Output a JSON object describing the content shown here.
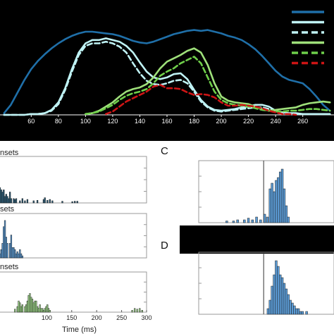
{
  "panel_labels": {
    "c": "C",
    "d": "D"
  },
  "small_titles": [
    "nsets",
    "sets",
    "nsets"
  ],
  "x_axis_label": "Time (ms)",
  "chart_data": [
    {
      "type": "line",
      "x": [
        40,
        45,
        50,
        55,
        60,
        65,
        70,
        75,
        80,
        85,
        90,
        95,
        100,
        105,
        110,
        115,
        120,
        125,
        130,
        135,
        140,
        145,
        150,
        155,
        160,
        165,
        170,
        175,
        180,
        185,
        190,
        195,
        200,
        205,
        210,
        215,
        220,
        225,
        230,
        235,
        240,
        245,
        250,
        255,
        260,
        265,
        270,
        275,
        280
      ],
      "xlim": [
        37,
        283
      ],
      "ylim": [
        0,
        1
      ],
      "xticks": [
        60,
        80,
        100,
        120,
        140,
        160,
        180,
        200,
        220,
        240,
        260
      ],
      "series": [
        {
          "color": "#1f6fa8",
          "dash": "solid",
          "values": [
            0.02,
            0.12,
            0.27,
            0.42,
            0.55,
            0.65,
            0.73,
            0.8,
            0.86,
            0.91,
            0.95,
            0.98,
            1.0,
            1.0,
            0.99,
            0.98,
            0.97,
            0.95,
            0.92,
            0.89,
            0.87,
            0.86,
            0.88,
            0.91,
            0.94,
            0.97,
            0.99,
            1.01,
            1.02,
            1.01,
            1.02,
            1.0,
            0.98,
            0.95,
            0.93,
            0.9,
            0.85,
            0.79,
            0.71,
            0.62,
            0.53,
            0.46,
            0.42,
            0.4,
            0.38,
            0.31,
            0.22,
            0.12,
            0.05
          ]
        },
        {
          "color": "#bff2f4",
          "dash": "solid",
          "values": [
            0,
            0,
            0,
            0,
            0.01,
            0.01,
            0.02,
            0.06,
            0.15,
            0.32,
            0.55,
            0.75,
            0.86,
            0.9,
            0.9,
            0.92,
            0.9,
            0.88,
            0.83,
            0.75,
            0.63,
            0.52,
            0.45,
            0.43,
            0.45,
            0.49,
            0.5,
            0.43,
            0.3,
            0.18,
            0.1,
            0.06,
            0.05,
            0.06,
            0.07,
            0.09,
            0.1,
            0.12,
            0.12,
            0.1,
            0.05,
            0.03,
            0.02,
            0.02,
            0.01,
            0.01,
            0.01,
            0.01,
            0.01
          ]
        },
        {
          "color": "#bff2f4",
          "dash": "dash",
          "values": [
            0,
            0,
            0,
            0,
            0.01,
            0.01,
            0.02,
            0.05,
            0.13,
            0.3,
            0.52,
            0.72,
            0.83,
            0.86,
            0.86,
            0.88,
            0.86,
            0.82,
            0.75,
            0.62,
            0.5,
            0.41,
            0.37,
            0.36,
            0.38,
            0.41,
            0.42,
            0.38,
            0.28,
            0.16,
            0.09,
            0.05,
            0.04,
            0.05,
            0.06,
            0.07,
            0.08,
            0.09,
            0.09,
            0.07,
            0.04,
            0.02,
            0.01,
            0.01,
            0.01,
            0.01,
            0.01,
            0.01,
            0.01
          ]
        },
        {
          "color": "#9ee07a",
          "dash": "solid",
          "values": [
            null,
            null,
            null,
            null,
            null,
            null,
            null,
            null,
            null,
            null,
            null,
            null,
            0.01,
            0.02,
            0.05,
            0.1,
            0.15,
            0.22,
            0.28,
            0.31,
            0.33,
            0.37,
            0.45,
            0.56,
            0.64,
            0.68,
            0.72,
            0.77,
            0.8,
            0.75,
            0.6,
            0.38,
            0.22,
            0.17,
            0.15,
            0.14,
            0.13,
            0.1,
            0.07,
            0.05,
            0.06,
            0.07,
            0.08,
            0.09,
            0.12,
            0.14,
            0.15,
            0.16,
            0.15
          ]
        },
        {
          "color": "#6fcf4a",
          "dash": "dash",
          "values": [
            null,
            null,
            null,
            null,
            null,
            null,
            null,
            null,
            null,
            null,
            null,
            null,
            0.01,
            0.02,
            0.04,
            0.08,
            0.12,
            0.18,
            0.23,
            0.26,
            0.28,
            0.31,
            0.38,
            0.47,
            0.52,
            0.56,
            0.62,
            0.66,
            0.7,
            0.62,
            0.45,
            0.28,
            0.18,
            0.14,
            0.12,
            0.11,
            0.1,
            0.08,
            0.06,
            0.05,
            0.04,
            0.04,
            0.05,
            0.05,
            0.06,
            0.07,
            0.07,
            0.06,
            0.05
          ]
        },
        {
          "color": "#cc1515",
          "dash": "dash",
          "values": [
            null,
            null,
            null,
            null,
            null,
            null,
            null,
            null,
            null,
            null,
            null,
            null,
            null,
            null,
            null,
            0.01,
            0.04,
            0.1,
            0.16,
            0.2,
            0.24,
            0.28,
            0.34,
            0.36,
            0.32,
            0.32,
            0.31,
            0.27,
            0.24,
            0.25,
            0.24,
            0.21,
            0.15,
            0.11,
            0.11,
            0.12,
            0.11,
            0.1,
            0.08,
            0.05,
            0.03,
            0.01,
            0.01,
            0.0,
            null,
            null,
            null,
            null,
            null
          ]
        }
      ]
    },
    {
      "type": "bar",
      "xlim": [
        -5,
        300
      ],
      "bin_width": 2.5,
      "color": "#2d5f7a",
      "bins": [
        [
          -2.5,
          0.35
        ],
        [
          0,
          0.45
        ],
        [
          2.5,
          0.25
        ],
        [
          5,
          0.35
        ],
        [
          7.5,
          0.3
        ],
        [
          10,
          0.25
        ],
        [
          12.5,
          0.3
        ],
        [
          15,
          0.15
        ],
        [
          17.5,
          0.2
        ],
        [
          20,
          0.15
        ],
        [
          22.5,
          0.1
        ],
        [
          25,
          0.25
        ],
        [
          27.5,
          0.1
        ],
        [
          32.5,
          0.1
        ],
        [
          35,
          0.08
        ],
        [
          37.5,
          0.1
        ],
        [
          45,
          0.05
        ],
        [
          50,
          0.1
        ],
        [
          55,
          0.05
        ],
        [
          60,
          0.08
        ],
        [
          72.5,
          0.05
        ],
        [
          80,
          0.06
        ],
        [
          92.5,
          0.08
        ],
        [
          95,
          0.12
        ],
        [
          100,
          0.06
        ],
        [
          105,
          0.08
        ],
        [
          110,
          0.05
        ],
        [
          130,
          0.04
        ],
        [
          150,
          0.03
        ],
        [
          155,
          0.04
        ],
        [
          160,
          0.04
        ]
      ]
    },
    {
      "type": "bar",
      "xlim": [
        -5,
        300
      ],
      "bin_width": 2.5,
      "color": "#5b9bd5",
      "bins": [
        [
          2.5,
          0.15
        ],
        [
          5,
          0.1
        ],
        [
          7.5,
          0.2
        ],
        [
          10,
          0.35
        ],
        [
          12.5,
          0.75
        ],
        [
          15,
          0.9
        ],
        [
          17.5,
          0.5
        ],
        [
          20,
          0.35
        ],
        [
          25,
          0.35
        ],
        [
          27.5,
          0.55
        ],
        [
          30,
          0.25
        ],
        [
          32.5,
          0.25
        ],
        [
          35,
          0.2
        ],
        [
          37.5,
          0.1
        ],
        [
          40,
          0.15
        ],
        [
          42.5,
          0.1
        ],
        [
          45,
          0.2
        ],
        [
          47.5,
          0.1
        ],
        [
          50,
          0.05
        ]
      ]
    },
    {
      "type": "bar",
      "xlim": [
        -5,
        300
      ],
      "bin_width": 2.5,
      "color": "#9fd88a",
      "bins": [
        [
          35,
          0.08
        ],
        [
          40,
          0.15
        ],
        [
          42.5,
          0.3
        ],
        [
          45,
          0.25
        ],
        [
          47.5,
          0.15
        ],
        [
          50,
          0.2
        ],
        [
          55,
          0.15
        ],
        [
          57.5,
          0.2
        ],
        [
          60,
          0.3
        ],
        [
          62.5,
          0.45
        ],
        [
          65,
          0.5
        ],
        [
          67.5,
          0.4
        ],
        [
          70,
          0.35
        ],
        [
          72.5,
          0.25
        ],
        [
          75,
          0.3
        ],
        [
          77.5,
          0.3
        ],
        [
          80,
          0.15
        ],
        [
          82.5,
          0.1
        ],
        [
          85,
          0.2
        ],
        [
          87.5,
          0.1
        ],
        [
          90,
          0.1
        ],
        [
          92.5,
          0.05
        ],
        [
          95,
          0.1
        ],
        [
          97.5,
          0.15
        ],
        [
          100,
          0.2
        ],
        [
          102.5,
          0.1
        ],
        [
          105,
          0.05
        ],
        [
          270,
          0.05
        ],
        [
          275,
          0.1
        ],
        [
          280,
          0.08
        ],
        [
          285,
          0.1
        ],
        [
          290,
          0.05
        ]
      ],
      "xticks": [
        100,
        150,
        200,
        250,
        300
      ]
    },
    {
      "type": "bar",
      "color": "#5b9bd5",
      "vline": 0.48,
      "xfrac_bins": [
        [
          0.2,
          0.03
        ],
        [
          0.25,
          0.03
        ],
        [
          0.28,
          0.05
        ],
        [
          0.33,
          0.05
        ],
        [
          0.36,
          0.08
        ],
        [
          0.39,
          0.05
        ],
        [
          0.42,
          0.1
        ],
        [
          0.45,
          0.05
        ],
        [
          0.48,
          0.15
        ],
        [
          0.5,
          0.1
        ],
        [
          0.52,
          0.6
        ],
        [
          0.535,
          0.7
        ],
        [
          0.55,
          0.55
        ],
        [
          0.565,
          0.75
        ],
        [
          0.58,
          0.8
        ],
        [
          0.595,
          0.9
        ],
        [
          0.61,
          0.95
        ],
        [
          0.625,
          0.6
        ],
        [
          0.64,
          0.3
        ],
        [
          0.655,
          0.1
        ]
      ]
    },
    {
      "type": "bar",
      "color": "#5b9bd5",
      "vline": 0.48,
      "xfrac_bins": [
        [
          0.505,
          0.1
        ],
        [
          0.52,
          0.25
        ],
        [
          0.535,
          0.5
        ],
        [
          0.55,
          0.7
        ],
        [
          0.565,
          0.95
        ],
        [
          0.58,
          0.85
        ],
        [
          0.595,
          0.7
        ],
        [
          0.61,
          0.65
        ],
        [
          0.625,
          0.55
        ],
        [
          0.64,
          0.45
        ],
        [
          0.655,
          0.35
        ],
        [
          0.67,
          0.25
        ],
        [
          0.685,
          0.2
        ],
        [
          0.7,
          0.15
        ],
        [
          0.715,
          0.1
        ],
        [
          0.73,
          0.1
        ],
        [
          0.745,
          0.05
        ],
        [
          0.76,
          0.05
        ],
        [
          0.79,
          0.05
        ]
      ]
    }
  ]
}
